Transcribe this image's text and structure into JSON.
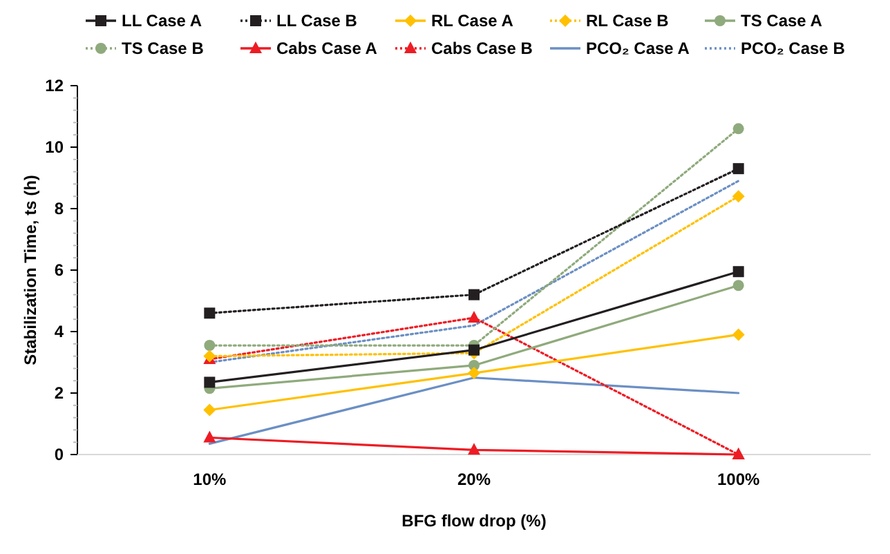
{
  "chart_data": {
    "type": "line",
    "xlabel": "BFG flow drop (%)",
    "ylabel": "Stabilization Time, ts (h)",
    "categories": [
      "10%",
      "20%",
      "100%"
    ],
    "ylim": [
      0,
      12
    ],
    "yticks": [
      0,
      {
        "value": 0.4,
        "label": null
      },
      {
        "value": 0.8,
        "label": null
      },
      {
        "value": 1.2,
        "label": null
      },
      {
        "value": 1.6,
        "label": null
      },
      2,
      {
        "value": 2.4,
        "label": null
      },
      {
        "value": 2.8,
        "label": null
      },
      {
        "value": 3.2,
        "label": null
      },
      {
        "value": 3.6,
        "label": null
      },
      4,
      {
        "value": 4.4,
        "label": null
      },
      {
        "value": 4.8,
        "label": null
      },
      {
        "value": 5.2,
        "label": null
      },
      {
        "value": 5.6,
        "label": null
      },
      6,
      {
        "value": 6.4,
        "label": null
      },
      {
        "value": 6.8,
        "label": null
      },
      {
        "value": 7.2,
        "label": null
      },
      {
        "value": 7.6,
        "label": null
      },
      8,
      {
        "value": 8.4,
        "label": null
      },
      {
        "value": 8.8,
        "label": null
      },
      {
        "value": 9.2,
        "label": null
      },
      {
        "value": 9.6,
        "label": null
      },
      10,
      {
        "value": 10.4,
        "label": null
      },
      {
        "value": 10.8,
        "label": null
      },
      {
        "value": 11.2,
        "label": null
      },
      {
        "value": 11.6,
        "label": null
      },
      12
    ],
    "grid": false,
    "legend": "top",
    "series": [
      {
        "name": "LL Case A",
        "color": "#231f20",
        "marker": "square",
        "line_style": "solid",
        "values": [
          2.35,
          3.4,
          5.95
        ]
      },
      {
        "name": "LL Case B",
        "color": "#231f20",
        "marker": "square",
        "line_style": "dotted",
        "values": [
          4.6,
          5.2,
          9.3
        ]
      },
      {
        "name": "RL Case A",
        "color": "#ffc000",
        "marker": "diamond",
        "line_style": "solid",
        "values": [
          1.45,
          2.65,
          3.9
        ]
      },
      {
        "name": "RL Case B",
        "color": "#ffc000",
        "marker": "diamond",
        "line_style": "dotted",
        "values": [
          3.2,
          3.3,
          8.4
        ]
      },
      {
        "name": "TS Case A",
        "color": "#8faa7c",
        "marker": "circle",
        "line_style": "solid",
        "values": [
          2.15,
          2.9,
          5.5
        ]
      },
      {
        "name": "TS Case B",
        "color": "#8faa7c",
        "marker": "circle",
        "line_style": "dotted",
        "values": [
          3.55,
          3.55,
          10.6
        ]
      },
      {
        "name": "Cabs Case A",
        "color": "#ed1c24",
        "marker": "triangle",
        "line_style": "solid",
        "values": [
          0.55,
          0.15,
          0
        ]
      },
      {
        "name": "Cabs Case B",
        "color": "#ed1c24",
        "marker": "triangle",
        "line_style": "dotted",
        "values": [
          3.1,
          4.45,
          0
        ]
      },
      {
        "name": "PCO₂ Case A",
        "color": "#6b8fc4",
        "marker": "none",
        "line_style": "solid",
        "values": [
          0.35,
          2.5,
          2.0
        ]
      },
      {
        "name": "PCO₂ Case B",
        "color": "#6b8fc4",
        "marker": "none",
        "line_style": "dotted",
        "values": [
          3.0,
          4.2,
          8.9
        ]
      }
    ]
  }
}
